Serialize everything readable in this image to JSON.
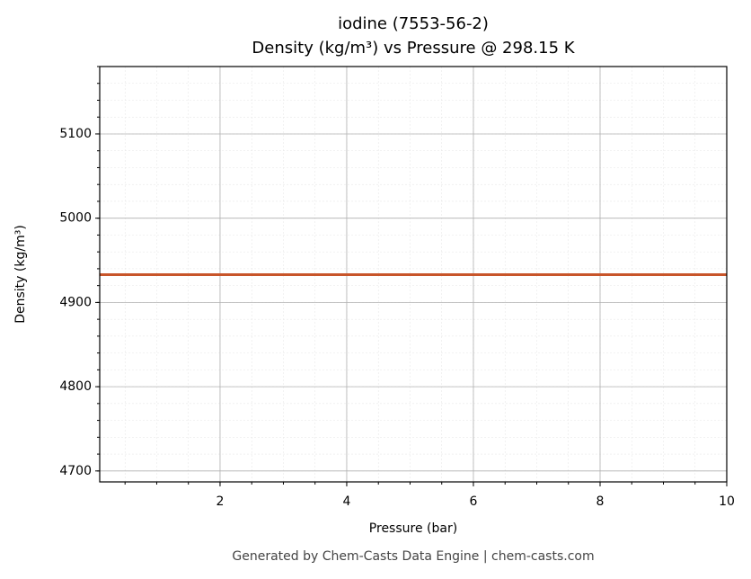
{
  "chart_data": {
    "type": "line",
    "title": "iodine (7553-56-2)",
    "subtitle": "Density (kg/m³) vs Pressure @ 298.15 K",
    "x_label": "Pressure (bar)",
    "y_label": "Density (kg/m³)",
    "footer": "Generated by Chem-Casts Data Engine | chem-casts.com",
    "x": [
      0.1,
      2,
      4,
      6,
      8,
      10
    ],
    "series": [
      {
        "name": "Density",
        "color": "#c8552a",
        "values": [
          4933,
          4933,
          4933,
          4933,
          4933,
          4933
        ]
      }
    ],
    "xlim": [
      0.1,
      10
    ],
    "xticks": [
      2,
      4,
      6,
      8,
      10
    ],
    "ylim": [
      4687,
      5180
    ],
    "yticks": [
      4700,
      4800,
      4900,
      5000,
      5100
    ],
    "grid": true,
    "minor_grid": true
  }
}
